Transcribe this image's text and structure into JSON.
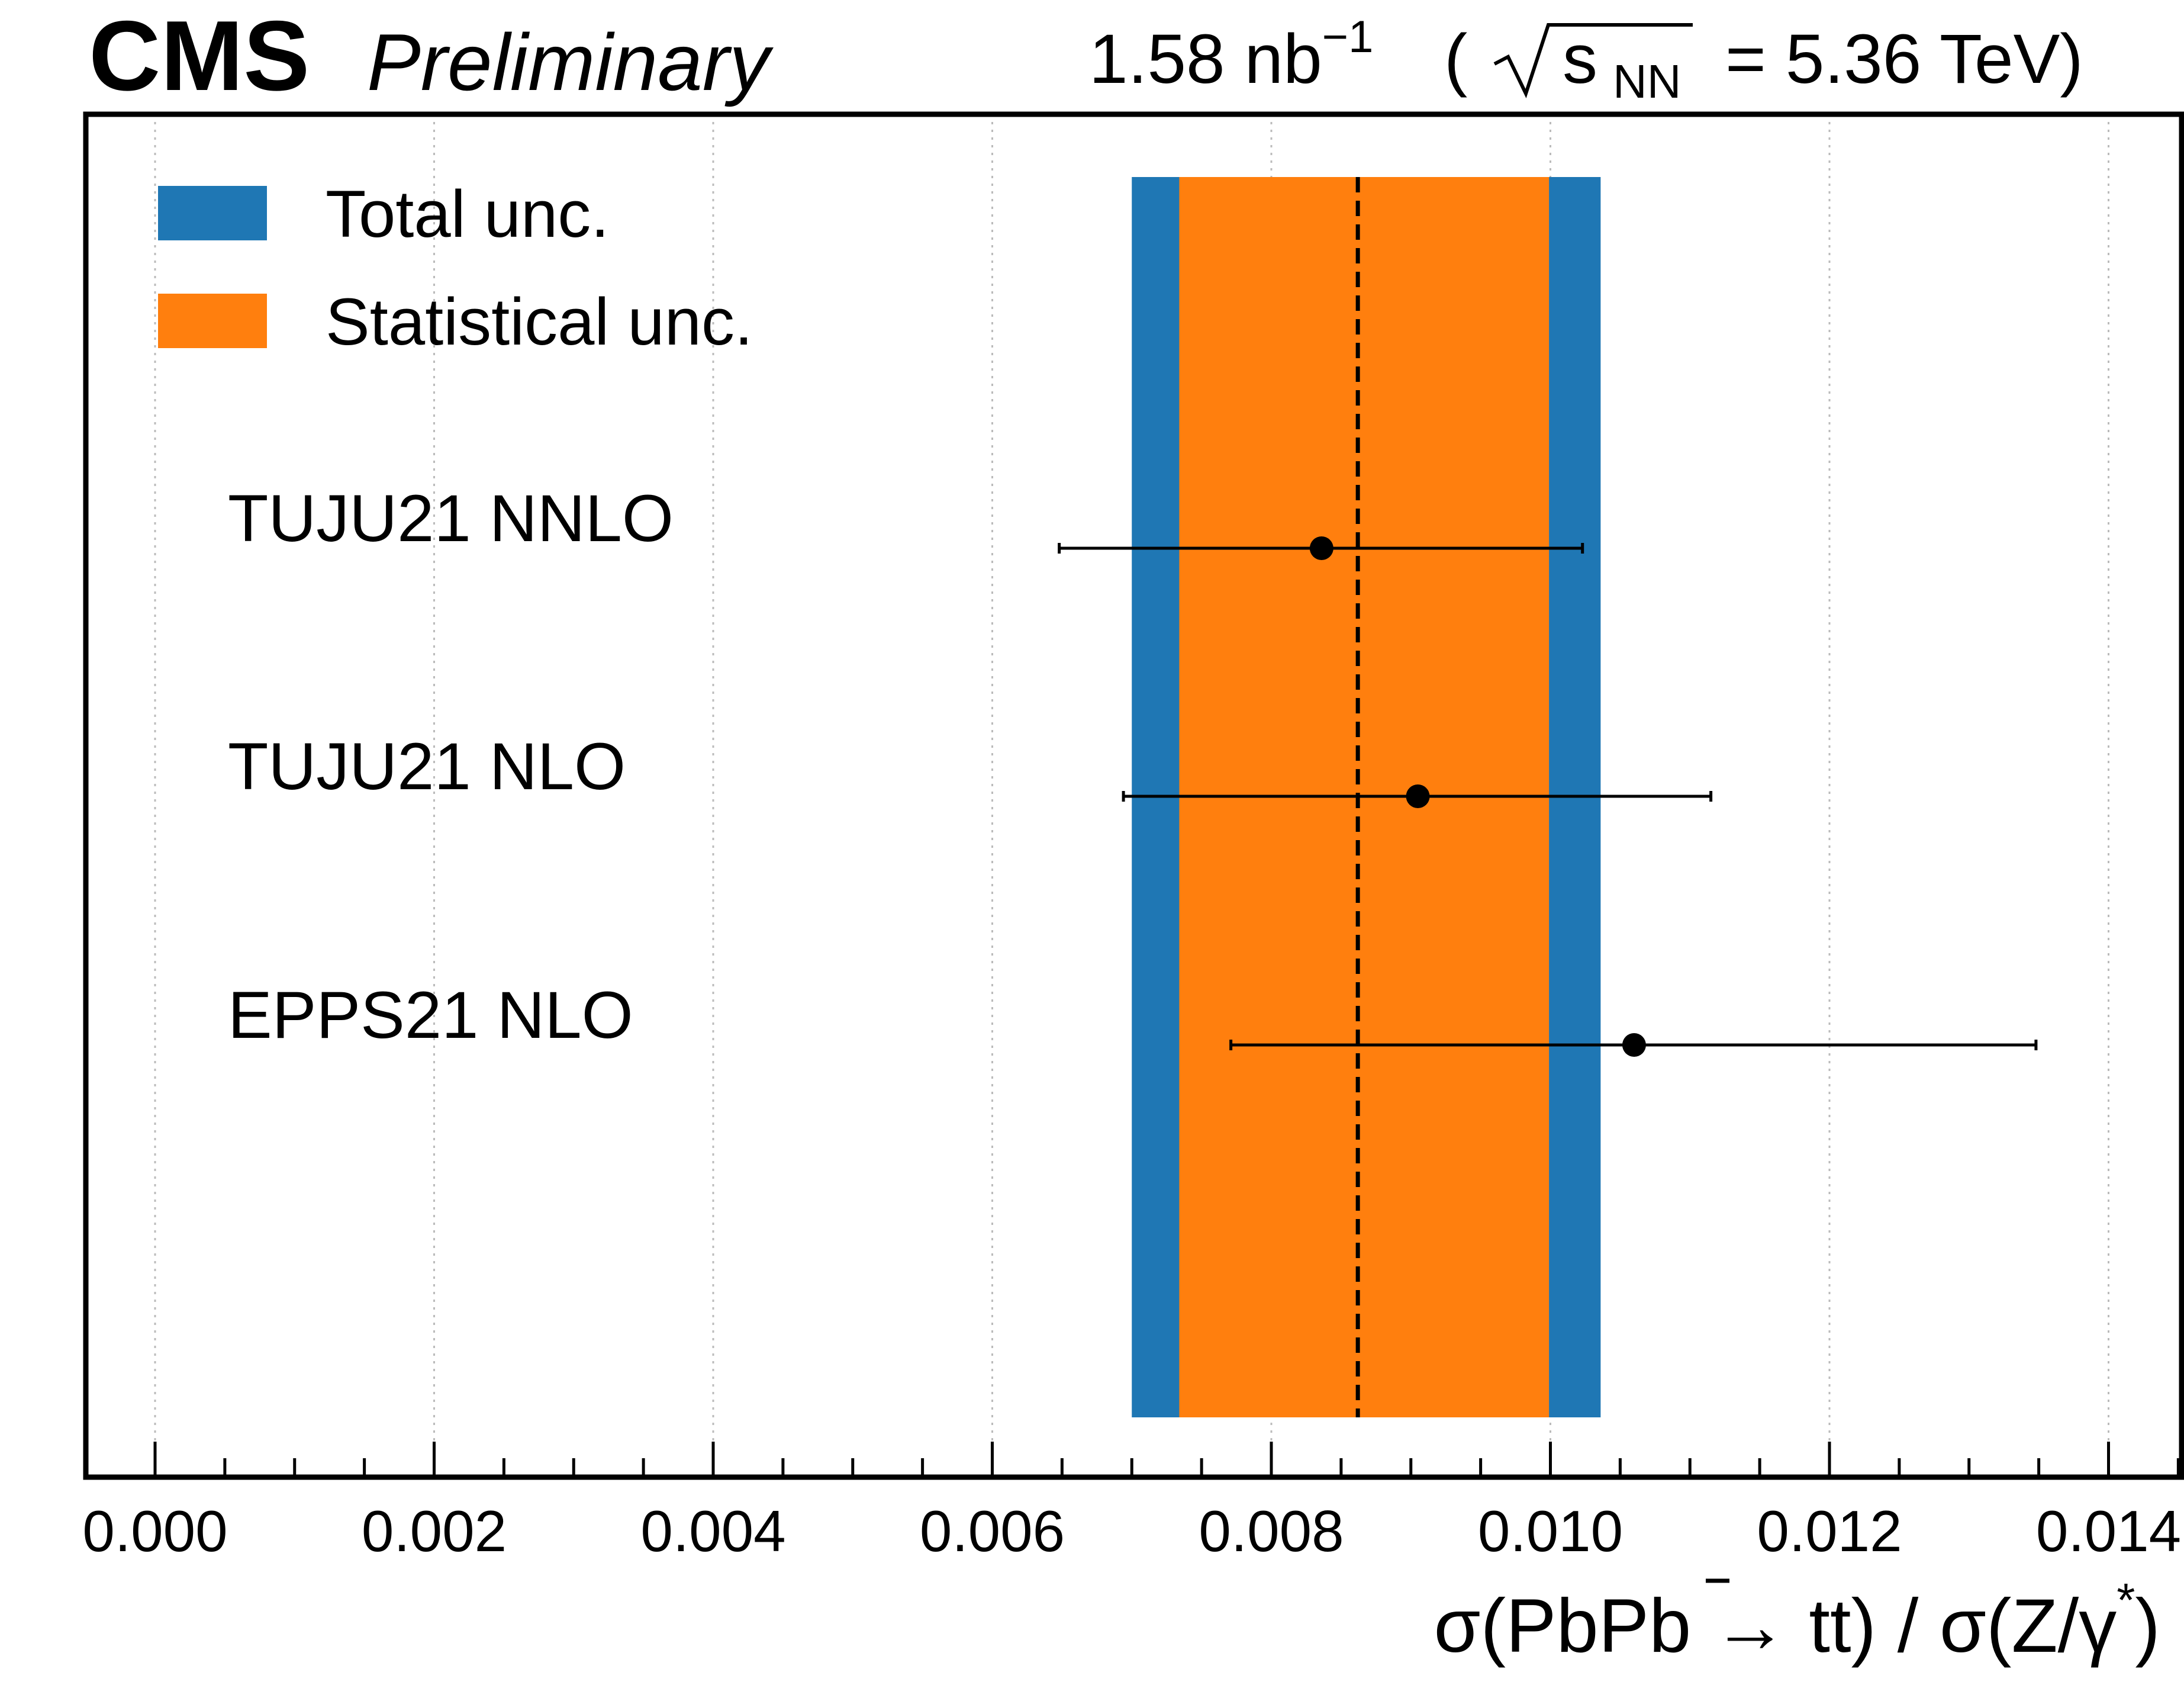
{
  "header": {
    "experiment": "CMS",
    "status": "Preliminary",
    "lumi": "1.58 nb",
    "lumi_exp": "−1",
    "energy_prefix": "(",
    "energy_s": "s",
    "energy_sub": "NN",
    "energy_value": "= 5.36 TeV)"
  },
  "legend": {
    "total": "Total unc.",
    "stat": "Statistical unc."
  },
  "xlabel": {
    "part1": "σ(PbPb → t",
    "part2": "t",
    "part3": ") / σ(Z/γ",
    "part4": "*",
    "part5": ")"
  },
  "colors": {
    "total_band": "#1f77b4",
    "stat_band": "#ff7f0e",
    "point": "#000000"
  },
  "chart_data": {
    "type": "scatter",
    "measurement": {
      "central": 0.00862,
      "total_unc": [
        0.007,
        0.01036
      ],
      "stat_unc": [
        0.00734,
        0.00999
      ]
    },
    "predictions": [
      {
        "name": "TUJU21 NNLO",
        "value": 0.00836,
        "lo": 0.00648,
        "hi": 0.01023
      },
      {
        "name": "TUJU21 NLO",
        "value": 0.00905,
        "lo": 0.00694,
        "hi": 0.01115
      },
      {
        "name": "EPPS21 NLO",
        "value": 0.0106,
        "lo": 0.00771,
        "hi": 0.01348
      }
    ],
    "xlim": [
      -0.0005,
      0.015
    ],
    "xticks": [
      "0.000",
      "0.002",
      "0.004",
      "0.006",
      "0.008",
      "0.010",
      "0.012",
      "0.014"
    ],
    "grid": "vertical dotted",
    "legend_position": "top-left"
  }
}
